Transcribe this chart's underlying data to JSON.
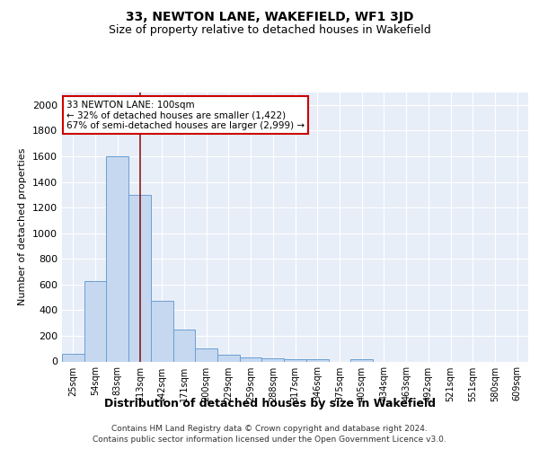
{
  "title_line1": "33, NEWTON LANE, WAKEFIELD, WF1 3JD",
  "title_line2": "Size of property relative to detached houses in Wakefield",
  "xlabel": "Distribution of detached houses by size in Wakefield",
  "ylabel": "Number of detached properties",
  "footer_line1": "Contains HM Land Registry data © Crown copyright and database right 2024.",
  "footer_line2": "Contains public sector information licensed under the Open Government Licence v3.0.",
  "annotation_line1": "33 NEWTON LANE: 100sqm",
  "annotation_line2": "← 32% of detached houses are smaller (1,422)",
  "annotation_line3": "67% of semi-detached houses are larger (2,999) →",
  "bar_labels": [
    "25sqm",
    "54sqm",
    "83sqm",
    "113sqm",
    "142sqm",
    "171sqm",
    "200sqm",
    "229sqm",
    "259sqm",
    "288sqm",
    "317sqm",
    "346sqm",
    "375sqm",
    "405sqm",
    "434sqm",
    "463sqm",
    "492sqm",
    "521sqm",
    "551sqm",
    "580sqm",
    "609sqm"
  ],
  "bar_values": [
    60,
    630,
    1600,
    1300,
    475,
    250,
    100,
    50,
    35,
    28,
    20,
    15,
    0,
    20,
    0,
    0,
    0,
    0,
    0,
    0,
    0
  ],
  "bar_color": "#c5d8f0",
  "bar_edge_color": "#6b9fd4",
  "vline_x_index": 3,
  "vline_color": "#8b1a1a",
  "ylim": [
    0,
    2100
  ],
  "yticks": [
    0,
    200,
    400,
    600,
    800,
    1000,
    1200,
    1400,
    1600,
    1800,
    2000
  ],
  "bg_color": "#e8eef8",
  "annotation_box_color": "#cc0000",
  "annotation_box_facecolor": "white",
  "title_fontsize": 10,
  "subtitle_fontsize": 9
}
